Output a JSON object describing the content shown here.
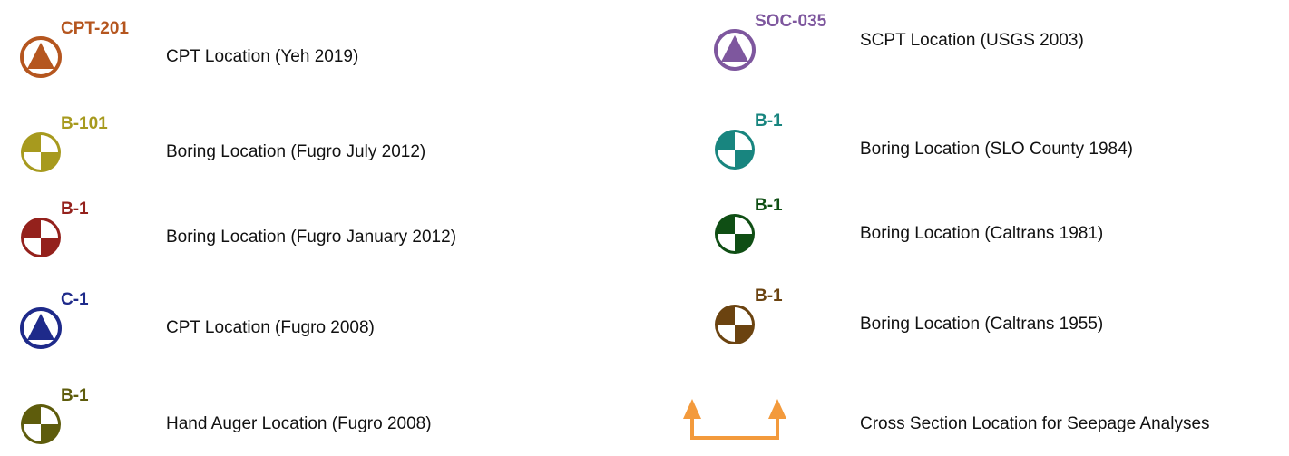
{
  "legend": {
    "items": [
      {
        "symbol": "cpt",
        "color": "#b5561f",
        "label": "CPT-201",
        "description": "CPT Location (Yeh 2019)"
      },
      {
        "symbol": "boring",
        "color": "#a79a1e",
        "label": "B-101",
        "description": "Boring Location (Fugro July 2012)"
      },
      {
        "symbol": "boring",
        "color": "#94211c",
        "label": "B-1",
        "description": "Boring Location (Fugro January 2012)"
      },
      {
        "symbol": "cpt",
        "color": "#1e2a8a",
        "label": "C-1",
        "description": "CPT Location (Fugro 2008)"
      },
      {
        "symbol": "boring",
        "color": "#5e5c0c",
        "label": "B-1",
        "description": "Hand Auger Location (Fugro 2008)"
      },
      {
        "symbol": "cpt",
        "color": "#7e579e",
        "label": "SOC-035",
        "description": "SCPT Location (USGS 2003)"
      },
      {
        "symbol": "boring",
        "color": "#18857f",
        "label": "B-1",
        "description": "Boring Location (SLO County 1984)"
      },
      {
        "symbol": "boring",
        "color": "#0f4e14",
        "label": "B-1",
        "description": "Boring Location (Caltrans 1981)"
      },
      {
        "symbol": "boring",
        "color": "#6b4310",
        "label": "B-1",
        "description": "Boring Location (Caltrans 1955)"
      },
      {
        "symbol": "section",
        "color": "#f39a3c",
        "description": "Cross Section Location for Seepage Analyses"
      }
    ]
  }
}
